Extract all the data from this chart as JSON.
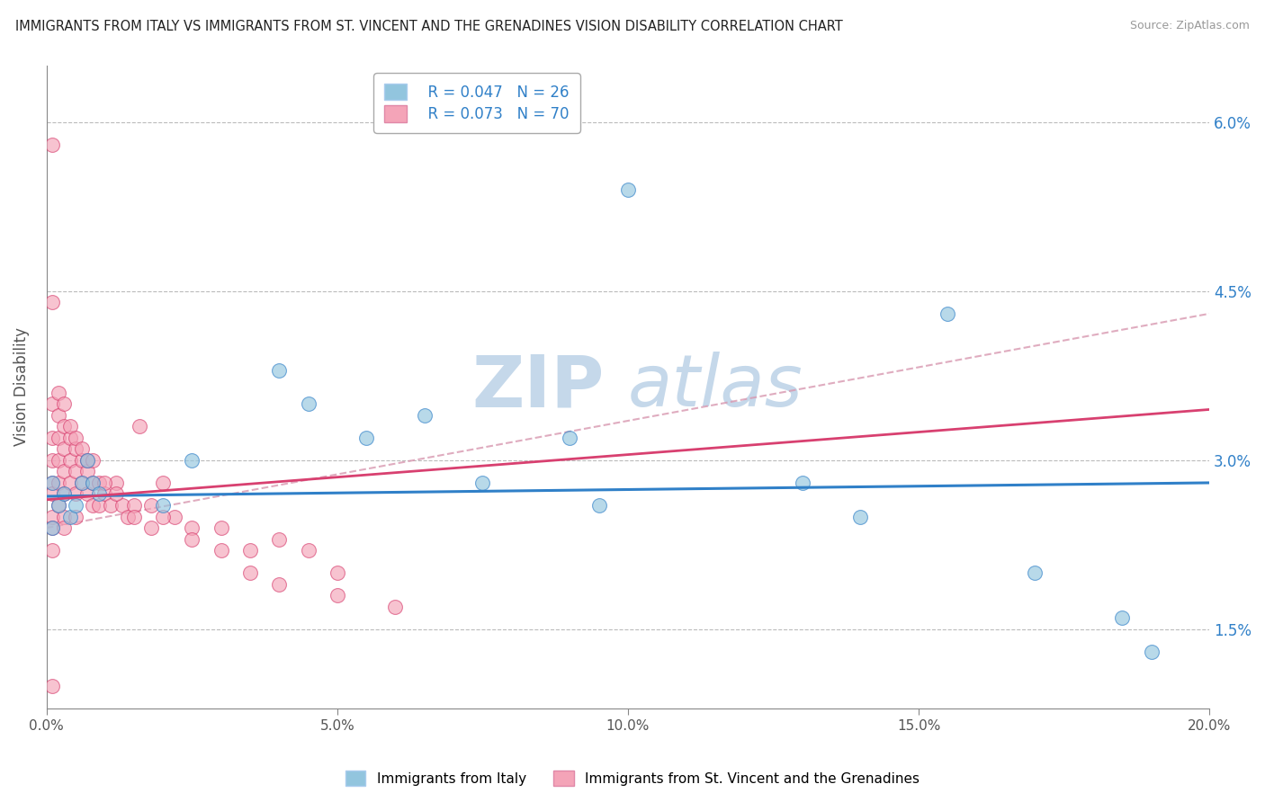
{
  "title": "IMMIGRANTS FROM ITALY VS IMMIGRANTS FROM ST. VINCENT AND THE GRENADINES VISION DISABILITY CORRELATION CHART",
  "source": "Source: ZipAtlas.com",
  "ylabel": "Vision Disability",
  "xlim": [
    0.0,
    0.2
  ],
  "ylim": [
    0.008,
    0.065
  ],
  "xtick_vals": [
    0.0,
    0.05,
    0.1,
    0.15,
    0.2
  ],
  "xtick_labels": [
    "0.0%",
    "5.0%",
    "10.0%",
    "15.0%",
    "20.0%"
  ],
  "ytick_vals": [
    0.015,
    0.03,
    0.045,
    0.06
  ],
  "ytick_labels": [
    "1.5%",
    "3.0%",
    "4.5%",
    "6.0%"
  ],
  "ytick_grid": [
    0.015,
    0.03,
    0.045,
    0.06
  ],
  "legend_italy": "R = 0.047   N = 26",
  "legend_svg": "R = 0.073   N = 70",
  "blue_color": "#92c5de",
  "pink_color": "#f4a4b8",
  "blue_line_color": "#3080c8",
  "pink_line_color": "#d84070",
  "dashed_line_color": "#d898b0",
  "italy_x": [
    0.001,
    0.001,
    0.002,
    0.003,
    0.004,
    0.005,
    0.006,
    0.007,
    0.008,
    0.009,
    0.02,
    0.025,
    0.04,
    0.045,
    0.055,
    0.065,
    0.075,
    0.09,
    0.095,
    0.1,
    0.13,
    0.14,
    0.155,
    0.17,
    0.185,
    0.19
  ],
  "italy_y": [
    0.028,
    0.024,
    0.026,
    0.027,
    0.025,
    0.026,
    0.028,
    0.03,
    0.028,
    0.027,
    0.026,
    0.03,
    0.038,
    0.035,
    0.032,
    0.034,
    0.028,
    0.032,
    0.026,
    0.054,
    0.028,
    0.025,
    0.043,
    0.02,
    0.016,
    0.013
  ],
  "svg_x": [
    0.001,
    0.001,
    0.001,
    0.001,
    0.001,
    0.001,
    0.001,
    0.001,
    0.001,
    0.002,
    0.002,
    0.002,
    0.002,
    0.002,
    0.003,
    0.003,
    0.003,
    0.003,
    0.003,
    0.003,
    0.004,
    0.004,
    0.004,
    0.005,
    0.005,
    0.005,
    0.005,
    0.006,
    0.006,
    0.007,
    0.007,
    0.008,
    0.008,
    0.009,
    0.009,
    0.01,
    0.011,
    0.012,
    0.013,
    0.014,
    0.015,
    0.016,
    0.018,
    0.02,
    0.022,
    0.025,
    0.03,
    0.035,
    0.04,
    0.045,
    0.05,
    0.001,
    0.002,
    0.003,
    0.004,
    0.005,
    0.006,
    0.007,
    0.008,
    0.01,
    0.012,
    0.015,
    0.018,
    0.02,
    0.025,
    0.03,
    0.035,
    0.04,
    0.05,
    0.06,
    0.001
  ],
  "svg_y": [
    0.058,
    0.035,
    0.032,
    0.03,
    0.028,
    0.027,
    0.025,
    0.024,
    0.022,
    0.034,
    0.032,
    0.03,
    0.028,
    0.026,
    0.033,
    0.031,
    0.029,
    0.027,
    0.025,
    0.024,
    0.032,
    0.03,
    0.028,
    0.031,
    0.029,
    0.027,
    0.025,
    0.03,
    0.028,
    0.029,
    0.027,
    0.028,
    0.026,
    0.028,
    0.026,
    0.027,
    0.026,
    0.028,
    0.026,
    0.025,
    0.026,
    0.033,
    0.026,
    0.028,
    0.025,
    0.024,
    0.024,
    0.022,
    0.023,
    0.022,
    0.02,
    0.044,
    0.036,
    0.035,
    0.033,
    0.032,
    0.031,
    0.03,
    0.03,
    0.028,
    0.027,
    0.025,
    0.024,
    0.025,
    0.023,
    0.022,
    0.02,
    0.019,
    0.018,
    0.017,
    0.01
  ],
  "watermark_zip": "ZIP",
  "watermark_atlas": "atlas",
  "watermark_color": "#c5d8ea",
  "background_color": "#ffffff",
  "grid_color": "#bbbbbb"
}
